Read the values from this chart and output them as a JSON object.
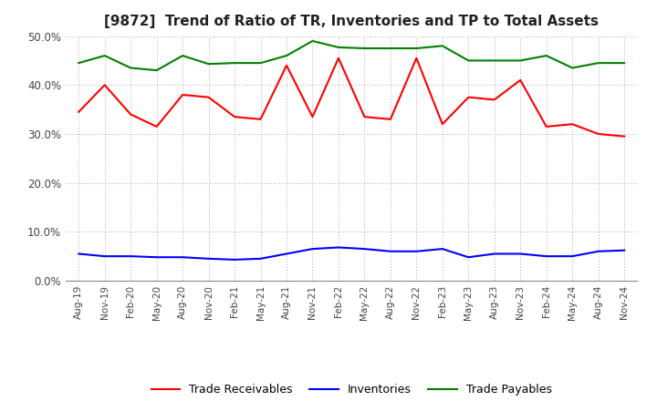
{
  "title": "[9872]  Trend of Ratio of TR, Inventories and TP to Total Assets",
  "labels": [
    "Aug-19",
    "Nov-19",
    "Feb-20",
    "May-20",
    "Aug-20",
    "Nov-20",
    "Feb-21",
    "May-21",
    "Aug-21",
    "Nov-21",
    "Feb-22",
    "May-22",
    "Aug-22",
    "Nov-22",
    "Feb-23",
    "May-23",
    "Aug-23",
    "Nov-23",
    "Feb-24",
    "May-24",
    "Aug-24",
    "Nov-24"
  ],
  "trade_receivables": [
    0.345,
    0.4,
    0.34,
    0.315,
    0.38,
    0.375,
    0.335,
    0.33,
    0.44,
    0.335,
    0.455,
    0.335,
    0.33,
    0.455,
    0.32,
    0.375,
    0.37,
    0.41,
    0.315,
    0.32,
    0.3,
    0.295
  ],
  "inventories": [
    0.055,
    0.05,
    0.05,
    0.048,
    0.048,
    0.045,
    0.043,
    0.045,
    0.055,
    0.065,
    0.068,
    0.065,
    0.06,
    0.06,
    0.065,
    0.048,
    0.055,
    0.055,
    0.05,
    0.05,
    0.06,
    0.062
  ],
  "trade_payables": [
    0.445,
    0.46,
    0.435,
    0.43,
    0.46,
    0.443,
    0.445,
    0.445,
    0.46,
    0.49,
    0.477,
    0.475,
    0.475,
    0.475,
    0.48,
    0.45,
    0.45,
    0.45,
    0.46,
    0.435,
    0.445,
    0.445
  ],
  "tr_color": "#ff0000",
  "inv_color": "#0000ff",
  "tp_color": "#008000",
  "ylim": [
    0.0,
    0.5
  ],
  "yticks": [
    0.0,
    0.1,
    0.2,
    0.3,
    0.4,
    0.5
  ],
  "background_color": "#ffffff",
  "grid_color": "#aaaaaa",
  "title_fontsize": 11,
  "legend_labels": [
    "Trade Receivables",
    "Inventories",
    "Trade Payables"
  ]
}
